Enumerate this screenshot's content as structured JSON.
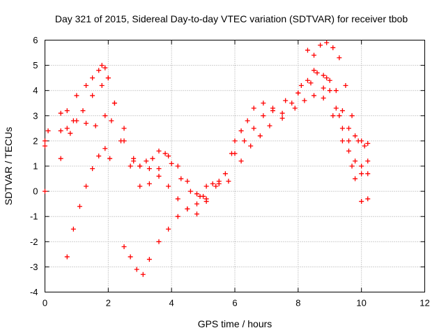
{
  "chart_data": {
    "type": "scatter",
    "title": "Day 321 of 2015, Sidereal Day-to-day VTEC variation (SDTVAR) for receiver tbob",
    "xlabel": "GPS time / hours",
    "ylabel": "SDTVAR / TECUs",
    "xlim": [
      0,
      12
    ],
    "ylim": [
      -4,
      6
    ],
    "xticks": [
      0,
      2,
      4,
      6,
      8,
      10,
      12
    ],
    "yticks": [
      -4,
      -3,
      -2,
      -1,
      0,
      1,
      2,
      3,
      4,
      5,
      6
    ],
    "xtick_labels": [
      "0",
      "2",
      "4",
      "6",
      "8",
      "10",
      "12"
    ],
    "ytick_labels": [
      "-4",
      "-3",
      "-2",
      "-1",
      "0",
      "1",
      "2",
      "3",
      "4",
      "5",
      "6"
    ],
    "grid": true,
    "legend": "none",
    "marker": "plus",
    "series_color": "#ff0000",
    "series": [
      {
        "x": [
          0,
          0.1,
          0.5,
          0.7,
          1.0,
          1.3,
          1.5,
          1.7,
          1.8,
          1.9,
          2.0,
          2.2,
          2.5,
          2.8,
          3.0,
          3.2,
          3.4,
          3.6,
          3.8,
          4.0,
          4.3,
          4.6,
          4.9,
          5.1,
          5.3,
          5.5,
          5.7,
          5.9,
          6.0,
          6.2,
          6.4,
          6.6,
          6.9,
          7.2,
          7.5,
          7.8,
          8.0,
          8.1,
          8.3,
          8.5,
          8.6,
          8.8,
          8.9,
          9.0,
          9.2,
          9.4,
          9.6,
          9.8,
          10.0,
          10.2
        ],
        "y": [
          2.0,
          2.4,
          3.1,
          3.2,
          3.8,
          4.2,
          4.5,
          4.8,
          5.0,
          4.9,
          4.5,
          3.5,
          2.5,
          1.3,
          1.0,
          1.2,
          1.3,
          1.6,
          1.5,
          1.1,
          0.5,
          0.0,
          -0.2,
          0.2,
          0.3,
          0.4,
          0.7,
          1.5,
          2.0,
          2.4,
          2.8,
          3.3,
          3.5,
          3.2,
          3.1,
          3.5,
          3.9,
          4.2,
          4.4,
          4.8,
          4.7,
          4.6,
          4.5,
          4.4,
          4.0,
          3.2,
          2.5,
          2.2,
          2.0,
          1.9
        ]
      },
      {
        "x": [
          0,
          0.5,
          0.7,
          0.9,
          1.2,
          1.5,
          1.8,
          2.0,
          2.2,
          2.5,
          2.8,
          3.0,
          3.3,
          3.6,
          3.9,
          4.2,
          4.5,
          4.8,
          5.1,
          5.5,
          6.0,
          6.3,
          6.6,
          6.9,
          7.2,
          7.6,
          8.0,
          8.4,
          8.8,
          9.0,
          9.3,
          9.6,
          9.8,
          10.0,
          10.2
        ],
        "y": [
          1.8,
          2.4,
          2.5,
          2.8,
          3.2,
          3.8,
          4.2,
          4.5,
          3.5,
          2.0,
          1.2,
          1.0,
          0.9,
          0.6,
          0.2,
          -0.3,
          -0.7,
          -0.9,
          -0.4,
          0.3,
          1.5,
          2.0,
          2.5,
          3.0,
          3.3,
          3.6,
          3.9,
          4.3,
          4.1,
          4.0,
          3.0,
          2.0,
          1.2,
          1.0,
          1.2
        ]
      },
      {
        "x": [
          0,
          0.5,
          0.8,
          1.0,
          1.3,
          1.6,
          1.9,
          2.1,
          2.4,
          2.7,
          3.0,
          3.3,
          3.6,
          3.9,
          4.2,
          4.5,
          4.8,
          5.1,
          5.4,
          5.8,
          6.2,
          6.5,
          6.8,
          7.1,
          7.5,
          7.9,
          8.2,
          8.5,
          8.8,
          9.1,
          9.4,
          9.7,
          10.0,
          10.2
        ],
        "y": [
          0.0,
          1.3,
          2.3,
          2.8,
          2.7,
          2.6,
          3.0,
          2.8,
          2.0,
          1.0,
          0.2,
          0.3,
          0.9,
          1.4,
          1.0,
          0.4,
          -0.1,
          -0.3,
          0.2,
          0.4,
          1.2,
          1.8,
          2.2,
          2.6,
          2.9,
          3.3,
          3.6,
          3.8,
          3.7,
          3.0,
          2.0,
          1.0,
          0.7,
          0.7
        ]
      },
      {
        "x": [
          0.7,
          0.9,
          1.1,
          1.3,
          1.5,
          1.7,
          1.9,
          2.05
        ],
        "y": [
          -2.6,
          -1.5,
          -0.6,
          0.2,
          0.9,
          1.4,
          1.7,
          1.3
        ]
      },
      {
        "x": [
          2.5,
          2.7,
          2.9,
          3.1,
          3.3,
          3.6,
          3.9,
          4.2,
          4.5,
          4.8,
          5.0
        ],
        "y": [
          -2.2,
          -2.6,
          -3.1,
          -3.3,
          -2.7,
          -2.0,
          -1.5,
          -1.0,
          -0.7,
          -0.5,
          -0.2
        ]
      },
      {
        "x": [
          8.3,
          8.5,
          8.7,
          8.9,
          9.1,
          9.3,
          9.5,
          9.7,
          9.9,
          10.1
        ],
        "y": [
          5.6,
          5.4,
          5.8,
          5.9,
          5.7,
          5.3,
          4.2,
          3.0,
          2.0,
          1.8
        ]
      },
      {
        "x": [
          9.2,
          9.4,
          9.6,
          9.8,
          10.0,
          10.2
        ],
        "y": [
          3.3,
          2.5,
          1.6,
          0.5,
          -0.4,
          -0.3
        ]
      }
    ]
  }
}
